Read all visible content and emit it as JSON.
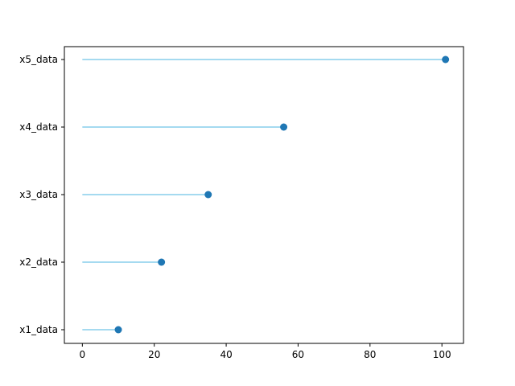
{
  "chart_data": {
    "type": "lollipop",
    "orientation": "horizontal",
    "title": "",
    "xlabel": "",
    "ylabel": "",
    "categories": [
      "x1_data",
      "x2_data",
      "x3_data",
      "x4_data",
      "x5_data"
    ],
    "values": [
      10,
      22,
      35,
      56,
      101
    ],
    "baseline": 0,
    "xlim": [
      -5,
      106
    ],
    "xticks": [
      0,
      20,
      40,
      60,
      80,
      100
    ],
    "xtick_labels": [
      "0",
      "20",
      "40",
      "60",
      "80",
      "100"
    ],
    "grid": false,
    "legend": "none",
    "stem_color": "#87ceeb",
    "marker_color": "#1f77b4"
  }
}
